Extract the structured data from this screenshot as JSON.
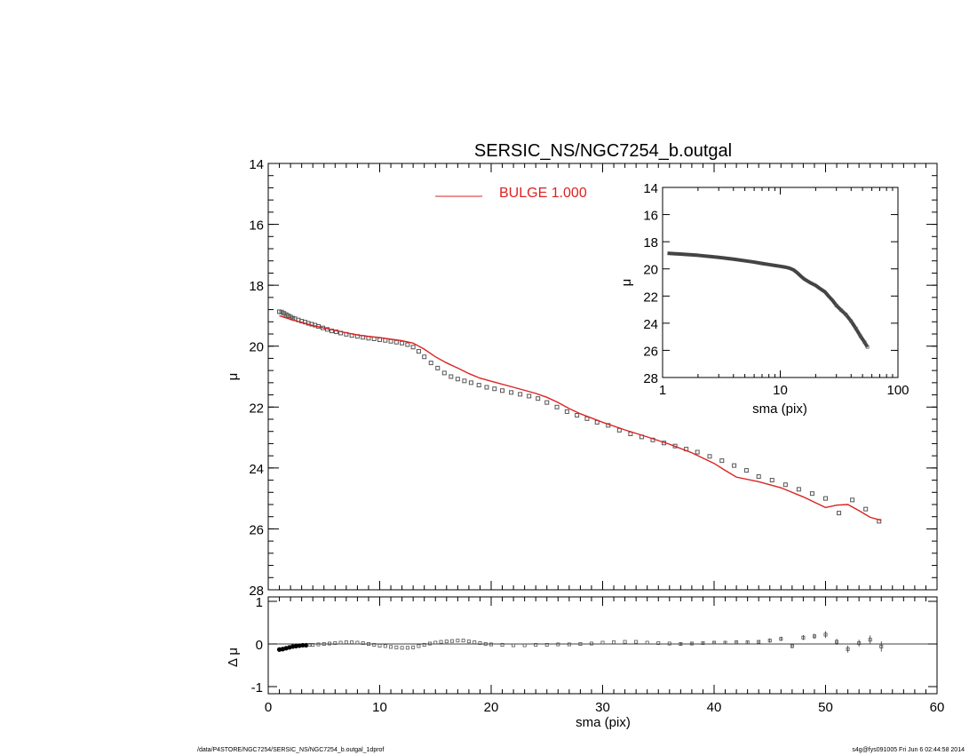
{
  "chart_data": [
    {
      "type": "scatter",
      "panel": "main",
      "title": "SERSIC_NS/NGC7254_b.outgal",
      "xlabel": "",
      "ylabel": "μ",
      "xlim": [
        0,
        60
      ],
      "ylim": [
        28,
        14
      ],
      "y_inverted": true,
      "x_ticks": [
        0,
        10,
        20,
        30,
        40,
        50,
        60
      ],
      "y_ticks": [
        14,
        16,
        18,
        20,
        22,
        24,
        26,
        28
      ],
      "legend": {
        "placement": "top-center",
        "entries": [
          {
            "label": "BULGE  1.000",
            "color": "#dd2222"
          }
        ]
      },
      "series": [
        {
          "name": "",
          "kind": "data-squares",
          "color": "#555555",
          "x": [
            1.0,
            1.2,
            1.4,
            1.6,
            1.8,
            2.0,
            2.2,
            2.4,
            2.7,
            3.0,
            3.3,
            3.6,
            3.9,
            4.2,
            4.5,
            4.9,
            5.3,
            5.7,
            6.1,
            6.5,
            7.0,
            7.5,
            8.0,
            8.5,
            9.0,
            9.5,
            10.0,
            10.5,
            11.0,
            11.5,
            12.0,
            12.5,
            13.0,
            13.5,
            14.0,
            14.6,
            15.2,
            15.8,
            16.4,
            17.0,
            17.6,
            18.2,
            18.9,
            19.6,
            20.3,
            21.0,
            21.8,
            22.6,
            23.4,
            24.2,
            25.0,
            25.9,
            26.8,
            27.7,
            28.6,
            29.5,
            30.5,
            31.5,
            32.5,
            33.5,
            34.5,
            35.5,
            36.5,
            37.5,
            38.5,
            39.6,
            40.7,
            41.8,
            42.9,
            44.0,
            45.2,
            46.4,
            47.6,
            48.8,
            50.0,
            51.2,
            52.4,
            53.6,
            54.8
          ],
          "y": [
            18.87,
            18.88,
            18.92,
            18.96,
            19.0,
            19.04,
            19.08,
            19.1,
            19.14,
            19.18,
            19.21,
            19.25,
            19.28,
            19.31,
            19.35,
            19.4,
            19.45,
            19.5,
            19.53,
            19.57,
            19.61,
            19.65,
            19.68,
            19.71,
            19.74,
            19.76,
            19.79,
            19.81,
            19.84,
            19.87,
            19.9,
            19.95,
            20.03,
            20.17,
            20.35,
            20.55,
            20.72,
            20.88,
            21.0,
            21.08,
            21.14,
            21.2,
            21.28,
            21.35,
            21.4,
            21.46,
            21.52,
            21.58,
            21.64,
            21.72,
            21.85,
            22.0,
            22.15,
            22.27,
            22.38,
            22.5,
            22.6,
            22.76,
            22.88,
            22.98,
            23.08,
            23.18,
            23.28,
            23.38,
            23.48,
            23.62,
            23.76,
            23.92,
            24.08,
            24.28,
            24.4,
            24.55,
            24.7,
            24.84,
            25.0,
            25.48,
            25.05,
            25.35,
            25.75
          ]
        },
        {
          "name": "BULGE  1.000",
          "kind": "model-line",
          "color": "#dd2222",
          "x": [
            1.0,
            2.0,
            3.0,
            4.0,
            5.0,
            6.0,
            7.0,
            8.0,
            9.0,
            10.0,
            11.0,
            12.0,
            13.0,
            14.0,
            15.0,
            16.0,
            17.0,
            18.0,
            19.0,
            20.0,
            22.0,
            24.0,
            25.0,
            26.0,
            27.0,
            28.0,
            30.0,
            32.0,
            34.0,
            36.0,
            38.0,
            40.0,
            41.0,
            42.0,
            44.0,
            46.0,
            48.0,
            50.0,
            51.0,
            52.0,
            53.0,
            54.0,
            55.0
          ],
          "y": [
            19.0,
            19.12,
            19.22,
            19.32,
            19.4,
            19.48,
            19.56,
            19.63,
            19.68,
            19.72,
            19.77,
            19.82,
            19.9,
            20.1,
            20.35,
            20.55,
            20.72,
            20.9,
            21.05,
            21.15,
            21.35,
            21.55,
            21.68,
            21.85,
            22.05,
            22.22,
            22.5,
            22.75,
            22.98,
            23.22,
            23.5,
            23.85,
            24.08,
            24.3,
            24.45,
            24.65,
            24.95,
            25.3,
            25.22,
            25.2,
            25.4,
            25.62,
            25.72
          ]
        }
      ]
    },
    {
      "type": "line",
      "panel": "inset",
      "xlabel": "sma (pix)",
      "ylabel": "μ",
      "x_scale": "log",
      "xlim": [
        1,
        100
      ],
      "ylim": [
        28,
        14
      ],
      "y_inverted": true,
      "x_ticks": [
        1,
        10,
        100
      ],
      "x_tick_labels": [
        "1",
        "10",
        "100"
      ],
      "y_ticks": [
        14,
        16,
        18,
        20,
        22,
        24,
        26,
        28
      ],
      "series": [
        {
          "name": "",
          "color": "#444444",
          "x": [
            1.1,
            1.5,
            2.0,
            3.0,
            4.0,
            5.0,
            6.0,
            7.0,
            8.0,
            9.0,
            10.0,
            11.0,
            12.0,
            13.0,
            14.0,
            15.0,
            16.0,
            18.0,
            20.0,
            22.0,
            24.0,
            26.0,
            28.0,
            30.0,
            33.0,
            36.0,
            40.0,
            44.0,
            48.0,
            52.0,
            55.0
          ],
          "y": [
            18.85,
            18.92,
            19.0,
            19.15,
            19.28,
            19.4,
            19.5,
            19.6,
            19.68,
            19.75,
            19.81,
            19.87,
            19.95,
            20.08,
            20.3,
            20.55,
            20.75,
            21.02,
            21.22,
            21.48,
            21.7,
            22.05,
            22.35,
            22.7,
            23.05,
            23.35,
            23.85,
            24.4,
            24.95,
            25.4,
            25.75
          ]
        }
      ]
    },
    {
      "type": "scatter",
      "panel": "residual",
      "xlabel": "sma (pix)",
      "ylabel": "Δ μ",
      "xlim": [
        0,
        60
      ],
      "ylim": [
        -1,
        1
      ],
      "x_ticks": [
        0,
        10,
        20,
        30,
        40,
        50,
        60
      ],
      "y_ticks": [
        -1,
        0,
        1
      ],
      "series": [
        {
          "name": "",
          "kind": "residual-points",
          "color": "#444444",
          "x": [
            1.0,
            1.3,
            1.6,
            1.9,
            2.2,
            2.5,
            2.8,
            3.1,
            3.4,
            3.7,
            4.0,
            4.5,
            5.0,
            5.5,
            6.0,
            6.5,
            7.0,
            7.5,
            8.0,
            8.5,
            9.0,
            9.5,
            10.0,
            10.5,
            11.0,
            11.5,
            12.0,
            12.5,
            13.0,
            13.5,
            14.0,
            14.5,
            15.0,
            15.5,
            16.0,
            16.5,
            17.0,
            17.5,
            18.0,
            18.5,
            19.0,
            19.5,
            20.0,
            21.0,
            22.0,
            23.0,
            24.0,
            25.0,
            26.0,
            27.0,
            28.0,
            29.0,
            30.0,
            31.0,
            32.0,
            33.0,
            34.0,
            35.0,
            36.0,
            37.0,
            38.0,
            39.0,
            40.0,
            41.0,
            42.0,
            43.0,
            44.0,
            45.0,
            46.0,
            47.0,
            48.0,
            49.0,
            50.0,
            51.0,
            52.0,
            53.0,
            54.0,
            55.0
          ],
          "y": [
            -0.13,
            -0.12,
            -0.1,
            -0.08,
            -0.06,
            -0.05,
            -0.04,
            -0.03,
            -0.03,
            -0.02,
            -0.02,
            -0.01,
            0.0,
            0.01,
            0.02,
            0.03,
            0.04,
            0.04,
            0.03,
            0.02,
            0.0,
            -0.02,
            -0.04,
            -0.05,
            -0.07,
            -0.08,
            -0.09,
            -0.09,
            -0.08,
            -0.05,
            -0.02,
            0.01,
            0.03,
            0.05,
            0.06,
            0.07,
            0.08,
            0.08,
            0.06,
            0.04,
            0.02,
            0.0,
            -0.01,
            -0.02,
            -0.03,
            -0.03,
            -0.02,
            -0.02,
            -0.01,
            -0.01,
            0.0,
            0.01,
            0.03,
            0.04,
            0.05,
            0.05,
            0.03,
            0.02,
            0.01,
            0.0,
            0.01,
            0.02,
            0.03,
            0.03,
            0.04,
            0.04,
            0.05,
            0.08,
            0.12,
            -0.05,
            0.15,
            0.18,
            0.22,
            0.05,
            -0.12,
            0.02,
            0.1,
            -0.06
          ],
          "err": [
            0,
            0,
            0,
            0,
            0,
            0,
            0,
            0,
            0,
            0,
            0,
            0,
            0,
            0,
            0,
            0,
            0,
            0,
            0,
            0,
            0,
            0,
            0,
            0,
            0,
            0,
            0,
            0,
            0,
            0,
            0,
            0,
            0,
            0,
            0,
            0,
            0,
            0,
            0,
            0,
            0,
            0,
            0,
            0,
            0,
            0,
            0,
            0,
            0,
            0,
            0,
            0,
            0,
            0,
            0,
            0,
            0,
            0,
            0,
            0.03,
            0.03,
            0.03,
            0.03,
            0.03,
            0.04,
            0.04,
            0.04,
            0.05,
            0.05,
            0.05,
            0.06,
            0.06,
            0.08,
            0.07,
            0.08,
            0.08,
            0.1,
            0.12
          ]
        }
      ]
    }
  ],
  "footer": {
    "left": "/data/P4STORE/NGC7254/SERSIC_NS/NGC7254_b.outgal_1dprof",
    "right": "s4g@fys091005  Fri Jun  6 02:44:58 2014"
  }
}
